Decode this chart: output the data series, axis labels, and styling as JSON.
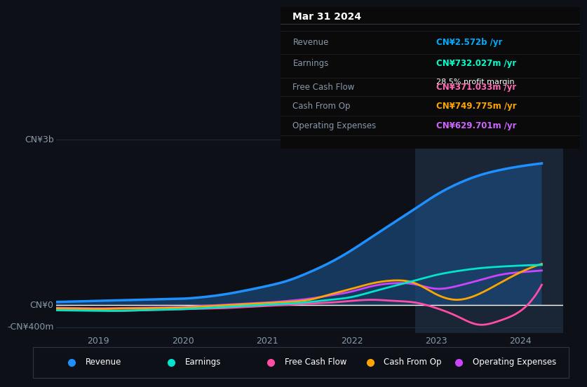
{
  "bg_color": "#0d1117",
  "plot_bg_color": "#0d1117",
  "highlight_bg": "#1a2535",
  "grid_color": "#1e2d3d",
  "zero_line_color": "#ffffff",
  "title_date": "Mar 31 2024",
  "tooltip": {
    "Revenue": {
      "value": "CN¥2.572b /yr",
      "color": "#00aaff"
    },
    "Earnings": {
      "value": "CN¥732.027m /yr",
      "color": "#00ffcc"
    },
    "Earnings_margin": {
      "value": "28.5% profit margin",
      "color": "#ffffff"
    },
    "Free Cash Flow": {
      "value": "CN¥371.033m /yr",
      "color": "#ff69b4"
    },
    "Cash From Op": {
      "value": "CN¥749.775m /yr",
      "color": "#ffa500"
    },
    "Operating Expenses": {
      "value": "CN¥629.701m /yr",
      "color": "#cc66ff"
    }
  },
  "series": {
    "Revenue": {
      "color": "#1e90ff",
      "fill": true,
      "fill_color": "#1a4a7a",
      "data_x": [
        2018.25,
        2018.5,
        2018.75,
        2019.0,
        2019.25,
        2019.5,
        2019.75,
        2020.0,
        2020.25,
        2020.5,
        2020.75,
        2021.0,
        2021.25,
        2021.5,
        2021.75,
        2022.0,
        2022.25,
        2022.5,
        2022.75,
        2023.0,
        2023.25,
        2023.5,
        2023.75,
        2024.0,
        2024.25
      ],
      "data_y": [
        50,
        60,
        70,
        80,
        90,
        100,
        110,
        120,
        150,
        200,
        270,
        350,
        450,
        600,
        780,
        1000,
        1250,
        1500,
        1750,
        2000,
        2200,
        2350,
        2450,
        2520,
        2572
      ]
    },
    "Earnings": {
      "color": "#00e5cc",
      "fill": false,
      "data_x": [
        2018.25,
        2018.5,
        2018.75,
        2019.0,
        2019.25,
        2019.5,
        2019.75,
        2020.0,
        2020.25,
        2020.5,
        2020.75,
        2021.0,
        2021.25,
        2021.5,
        2021.75,
        2022.0,
        2022.25,
        2022.5,
        2022.75,
        2023.0,
        2023.25,
        2023.5,
        2023.75,
        2024.0,
        2024.25
      ],
      "data_y": [
        -80,
        -90,
        -95,
        -100,
        -100,
        -90,
        -80,
        -70,
        -50,
        -30,
        -10,
        10,
        30,
        60,
        100,
        150,
        250,
        350,
        450,
        550,
        620,
        670,
        700,
        720,
        732
      ]
    },
    "Free Cash Flow": {
      "color": "#ff4da6",
      "fill": false,
      "data_x": [
        2018.25,
        2018.5,
        2018.75,
        2019.0,
        2019.25,
        2019.5,
        2019.75,
        2020.0,
        2020.25,
        2020.5,
        2020.75,
        2021.0,
        2021.25,
        2021.5,
        2021.75,
        2022.0,
        2022.25,
        2022.5,
        2022.75,
        2023.0,
        2023.25,
        2023.5,
        2023.75,
        2024.0,
        2024.25
      ],
      "data_y": [
        -60,
        -70,
        -80,
        -90,
        -100,
        -90,
        -80,
        -70,
        -60,
        -50,
        -30,
        -10,
        10,
        30,
        50,
        80,
        100,
        80,
        50,
        -50,
        -200,
        -350,
        -280,
        -100,
        371
      ]
    },
    "Cash From Op": {
      "color": "#ffa500",
      "fill": false,
      "data_x": [
        2018.25,
        2018.5,
        2018.75,
        2019.0,
        2019.25,
        2019.5,
        2019.75,
        2020.0,
        2020.25,
        2020.5,
        2020.75,
        2021.0,
        2021.25,
        2021.5,
        2021.75,
        2022.0,
        2022.25,
        2022.5,
        2022.75,
        2023.0,
        2023.25,
        2023.5,
        2023.75,
        2024.0,
        2024.25
      ],
      "data_y": [
        -50,
        -55,
        -60,
        -65,
        -60,
        -55,
        -50,
        -40,
        -20,
        0,
        20,
        40,
        60,
        100,
        200,
        300,
        400,
        450,
        400,
        200,
        100,
        200,
        400,
        600,
        750
      ]
    },
    "Operating Expenses": {
      "color": "#cc44ff",
      "fill": false,
      "data_x": [
        2018.25,
        2018.5,
        2018.75,
        2019.0,
        2019.25,
        2019.5,
        2019.75,
        2020.0,
        2020.25,
        2020.5,
        2020.75,
        2021.0,
        2021.25,
        2021.5,
        2021.75,
        2022.0,
        2022.25,
        2022.5,
        2022.75,
        2023.0,
        2023.25,
        2023.5,
        2023.75,
        2024.0,
        2024.25
      ],
      "data_y": [
        -40,
        -45,
        -50,
        -55,
        -50,
        -45,
        -40,
        -30,
        -10,
        10,
        30,
        50,
        80,
        120,
        180,
        250,
        350,
        400,
        380,
        300,
        350,
        450,
        550,
        600,
        630
      ]
    }
  },
  "highlight_x_start": 2022.75,
  "highlight_x_end": 2024.5,
  "x_ticks": [
    2019,
    2020,
    2021,
    2022,
    2023,
    2024
  ],
  "x_labels": [
    "2019",
    "2020",
    "2021",
    "2022",
    "2023",
    "2024"
  ],
  "y_ticks": [
    -400,
    0,
    3000
  ],
  "y_labels": [
    "-CN¥400m",
    "CN¥0",
    "CN¥3b"
  ],
  "ylim": [
    -500,
    3200
  ],
  "xlim": [
    2018.5,
    2024.5
  ],
  "legend_items": [
    {
      "label": "Revenue",
      "color": "#1e90ff"
    },
    {
      "label": "Earnings",
      "color": "#00e5cc"
    },
    {
      "label": "Free Cash Flow",
      "color": "#ff4da6"
    },
    {
      "label": "Cash From Op",
      "color": "#ffa500"
    },
    {
      "label": "Operating Expenses",
      "color": "#cc44ff"
    }
  ]
}
